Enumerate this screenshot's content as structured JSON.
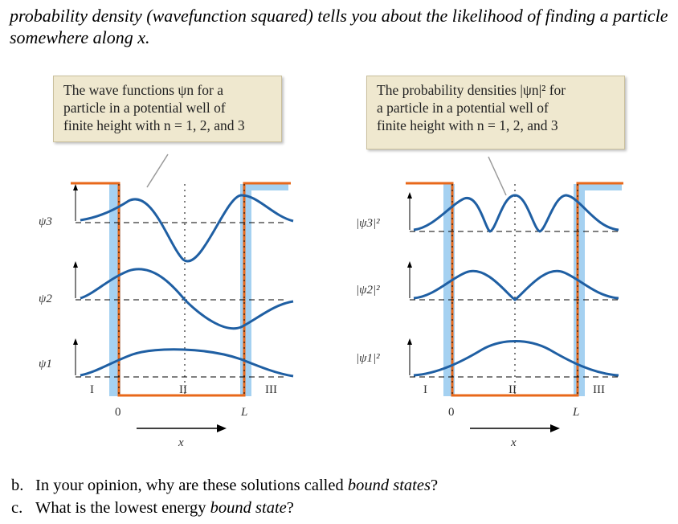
{
  "intro": "probability density (wavefunction squared) tells you about the likelihood of finding a particle somewhere along x.",
  "left_panel": {
    "callout_lines": [
      "The wave functions ψn for a",
      "particle in a potential well of",
      "finite height with n = 1, 2, and 3"
    ],
    "level_labels": [
      "ψ3",
      "ψ2",
      "ψ1"
    ],
    "region_labels": [
      "I",
      "II",
      "III"
    ],
    "position_labels": [
      "0",
      "L"
    ],
    "axis_label": "x"
  },
  "right_panel": {
    "callout_lines": [
      "The probability densities |ψn|² for",
      "a particle in a potential well of",
      "finite height with n = 1, 2, and 3"
    ],
    "level_labels": [
      "|ψ3|²",
      "|ψ2|²",
      "|ψ1|²"
    ],
    "region_labels": [
      "I",
      "II",
      "III"
    ],
    "position_labels": [
      "0",
      "L"
    ],
    "axis_label": "x"
  },
  "questions": [
    {
      "mark": "b.",
      "before": "In your opinion, why are these solutions called ",
      "em": "bound states",
      "after": "?"
    },
    {
      "mark": "c.",
      "before": "What is the lowest energy ",
      "em": "bound state",
      "after": "?"
    }
  ],
  "colors": {
    "well": "#e8681a",
    "barrier_glow": "#8fc6ee",
    "curve": "#1f5fa3",
    "callout_bg": "#efe8cf"
  }
}
